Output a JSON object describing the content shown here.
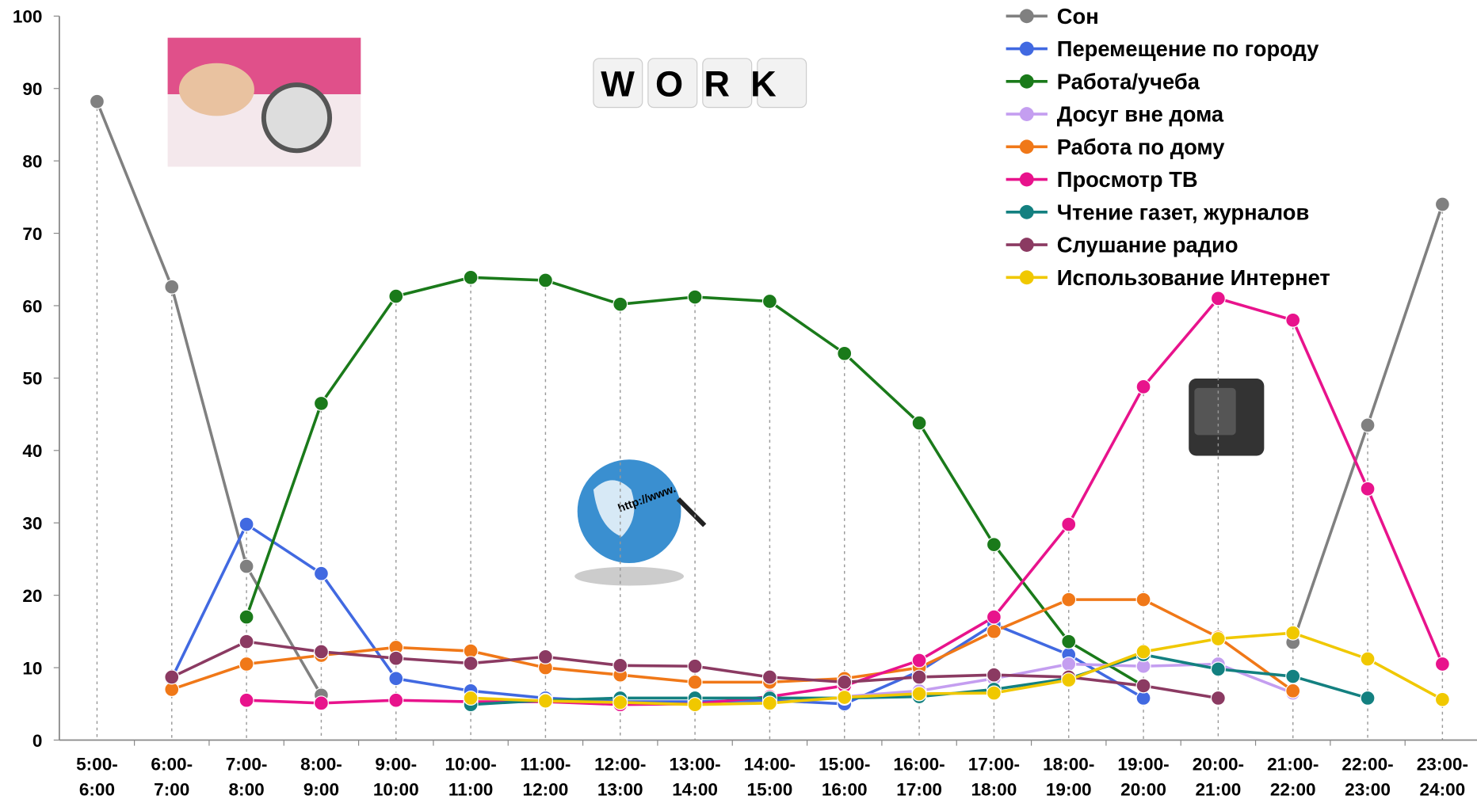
{
  "chart_data": {
    "type": "line",
    "categories": [
      "5:00-\n6:00",
      "6:00-\n7:00",
      "7:00-\n8:00",
      "8:00-\n9:00",
      "9:00-\n10:00",
      "10:00-\n11:00",
      "11:00-\n12:00",
      "12:00-\n13:00",
      "13:00-\n14:00",
      "14:00-\n15:00",
      "15:00-\n16:00",
      "16:00-\n17:00",
      "17:00-\n18:00",
      "18:00-\n19:00",
      "19:00-\n20:00",
      "20:00-\n21:00",
      "21:00-\n22:00",
      "22:00-\n23:00",
      "23:00-\n24:00"
    ],
    "series": [
      {
        "name": "Сон",
        "color": "#808080",
        "values": [
          88.2,
          62.6,
          24,
          6.2,
          null,
          null,
          null,
          null,
          null,
          null,
          null,
          null,
          null,
          null,
          null,
          null,
          13.5,
          43.5,
          74
        ]
      },
      {
        "name": "Перемещение по городу",
        "color": "#4169e1",
        "values": [
          null,
          8.5,
          29.8,
          23,
          8.5,
          6.8,
          5.8,
          5.3,
          5.3,
          5.5,
          5,
          9.5,
          16,
          11.8,
          5.8,
          null,
          null,
          null,
          null
        ]
      },
      {
        "name": "Работа/учеба",
        "color": "#1a7a1a",
        "values": [
          null,
          null,
          17,
          46.5,
          61.3,
          63.9,
          63.5,
          60.2,
          61.2,
          60.6,
          53.4,
          43.8,
          27,
          13.6,
          7.5,
          null,
          null,
          null,
          null
        ]
      },
      {
        "name": "Досуг вне дома",
        "color": "#c49ef0",
        "values": [
          null,
          null,
          null,
          null,
          null,
          null,
          null,
          null,
          null,
          null,
          6,
          6.8,
          8.5,
          10.5,
          10.2,
          10.5,
          6.5,
          null,
          null
        ]
      },
      {
        "name": "Работа по дому",
        "color": "#f07818",
        "values": [
          null,
          7,
          10.5,
          11.7,
          12.8,
          12.3,
          10,
          9,
          8,
          8,
          8.5,
          10,
          15,
          19.4,
          19.4,
          14.2,
          6.8,
          null,
          null
        ]
      },
      {
        "name": "Просмотр ТВ",
        "color": "#e8138c",
        "values": [
          null,
          null,
          5.5,
          5.1,
          5.5,
          5.3,
          5.3,
          4.9,
          5,
          6,
          7.5,
          11,
          17,
          29.8,
          48.8,
          61,
          58,
          34.7,
          10.5
        ]
      },
      {
        "name": "Чтение газет, журналов",
        "color": "#138080",
        "values": [
          null,
          null,
          null,
          null,
          null,
          4.9,
          5.5,
          5.8,
          5.8,
          5.8,
          5.8,
          6,
          7,
          8.5,
          11.8,
          9.8,
          8.8,
          5.8,
          null
        ]
      },
      {
        "name": "Слушание радио",
        "color": "#8b3a62",
        "values": [
          null,
          8.7,
          13.6,
          12.2,
          11.3,
          10.6,
          11.5,
          10.3,
          10.2,
          8.7,
          8,
          8.7,
          9,
          8.7,
          7.5,
          5.8,
          null,
          null,
          null
        ]
      },
      {
        "name": "Использование Интернет",
        "color": "#f0c800",
        "values": [
          null,
          null,
          null,
          null,
          null,
          5.8,
          5.4,
          5.2,
          4.9,
          5.1,
          5.9,
          6.4,
          6.5,
          8.3,
          12.2,
          14,
          14.8,
          11.2,
          5.6
        ]
      }
    ],
    "ylim": [
      0,
      100
    ],
    "yticks": [
      0,
      10,
      20,
      30,
      40,
      50,
      60,
      70,
      80,
      90,
      100
    ],
    "annotations": [
      "WORK",
      "http://www."
    ]
  }
}
